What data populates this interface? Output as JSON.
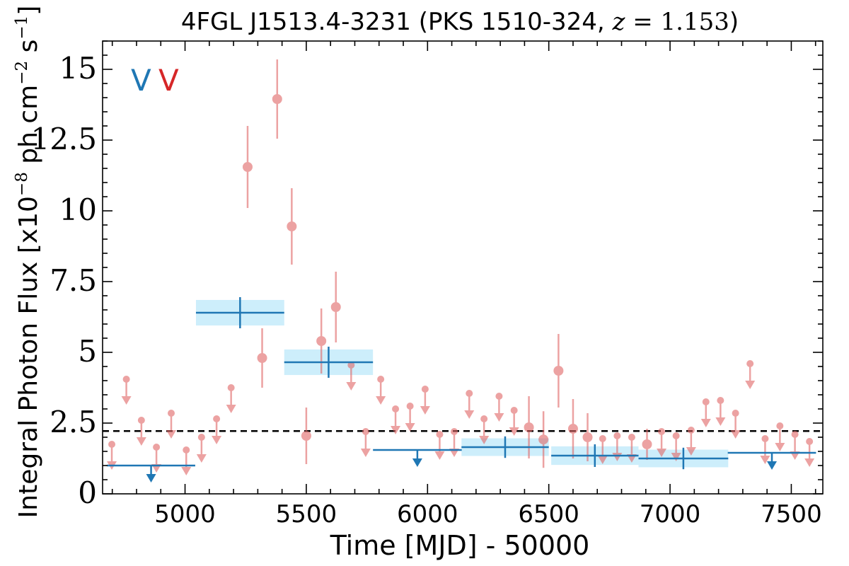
{
  "chart_data": {
    "type": "scatter",
    "title": "4FGL J1513.4-3231 (PKS 1510-324, z = 1.153)",
    "title_parts": {
      "prefix": "4FGL J1513.4-3231 (PKS 1510-324, ",
      "var": "z",
      "eq": " = 1.153",
      "suffix": ")"
    },
    "xlabel": "Time [MJD] - 50000",
    "ylabel": "Integral Photon Flux [x10⁻⁸ ph cm⁻² s⁻¹]",
    "ylabel_parts": {
      "pre": "Integral Photon Flux [x10",
      "e1": "−8",
      "mid": " ph cm",
      "e2": "−2",
      "s": " s",
      "e3": "−1",
      "post": "]"
    },
    "xlim": [
      4660,
      7630
    ],
    "ylim": [
      0,
      16
    ],
    "xticks": [
      5000,
      5500,
      6000,
      6500,
      7000,
      7500
    ],
    "yticks": [
      0,
      2.5,
      5,
      7.5,
      10,
      12.5,
      15
    ],
    "ytick_labels": [
      "0",
      "2.5",
      "5",
      "7.5",
      "10",
      "12.5",
      "15"
    ],
    "legend": {
      "placement": "top-left",
      "labels": [
        {
          "text": "V",
          "color": "#1f77b4"
        },
        {
          "text": "V",
          "color": "#d62728"
        }
      ]
    },
    "colors": {
      "blue": "#1f77b4",
      "red": "#e06666",
      "band": "#cdeefb"
    },
    "threshold_line": 2.22,
    "series": [
      {
        "color": "#1f77b4",
        "detections": [
          {
            "x": 5227,
            "xerr": 182,
            "y": 6.4,
            "yerr": 0.55
          },
          {
            "x": 5592,
            "xerr": 183,
            "y": 4.65,
            "yerr": 0.55
          },
          {
            "x": 6320,
            "xerr": 180,
            "y": 1.65,
            "yerr": 0.38
          },
          {
            "x": 6690,
            "xerr": 180,
            "y": 1.35,
            "yerr": 0.4
          },
          {
            "x": 7055,
            "xerr": 185,
            "y": 1.25,
            "yerr": 0.38
          }
        ],
        "upper_limits": [
          {
            "x": 4860,
            "xerr": 182,
            "y": 1.0
          },
          {
            "x": 5958,
            "xerr": 183,
            "y": 1.55
          },
          {
            "x": 7420,
            "xerr": 182,
            "y": 1.45
          }
        ]
      },
      {
        "color": "#e06666",
        "detections": [
          {
            "x": 5258,
            "y": 11.55,
            "yerr": 1.45
          },
          {
            "x": 5318,
            "y": 4.8,
            "yerr": 1.05
          },
          {
            "x": 5380,
            "y": 13.95,
            "yerr": 1.4
          },
          {
            "x": 5440,
            "y": 9.45,
            "yerr": 1.35
          },
          {
            "x": 5500,
            "y": 2.05,
            "yerr": 1.0
          },
          {
            "x": 5562,
            "y": 5.4,
            "yerr": 1.15
          },
          {
            "x": 5622,
            "y": 6.6,
            "yerr": 1.25
          },
          {
            "x": 6418,
            "y": 2.35,
            "yerr": 1.1
          },
          {
            "x": 6478,
            "y": 1.92,
            "yerr": 1.0
          },
          {
            "x": 6540,
            "y": 4.35,
            "yerr": 1.3
          },
          {
            "x": 6600,
            "y": 2.3,
            "yerr": 1.05
          },
          {
            "x": 6660,
            "y": 2.0,
            "yerr": 0.85
          },
          {
            "x": 6905,
            "y": 1.75,
            "yerr": 0.55
          }
        ],
        "upper_limits": [
          {
            "x": 4698,
            "y": 1.75
          },
          {
            "x": 4758,
            "y": 4.05
          },
          {
            "x": 4820,
            "y": 2.6
          },
          {
            "x": 4882,
            "y": 1.65
          },
          {
            "x": 4943,
            "y": 2.85
          },
          {
            "x": 5005,
            "y": 1.55
          },
          {
            "x": 5068,
            "y": 2.0
          },
          {
            "x": 5130,
            "y": 2.65
          },
          {
            "x": 5190,
            "y": 3.75
          },
          {
            "x": 5685,
            "y": 4.55
          },
          {
            "x": 5745,
            "y": 2.2
          },
          {
            "x": 5807,
            "y": 4.05
          },
          {
            "x": 5868,
            "y": 3.0
          },
          {
            "x": 5928,
            "y": 3.1
          },
          {
            "x": 5990,
            "y": 3.7
          },
          {
            "x": 6050,
            "y": 2.1
          },
          {
            "x": 6110,
            "y": 2.2
          },
          {
            "x": 6172,
            "y": 3.55
          },
          {
            "x": 6233,
            "y": 2.65
          },
          {
            "x": 6295,
            "y": 3.45
          },
          {
            "x": 6357,
            "y": 2.95
          },
          {
            "x": 6722,
            "y": 1.95
          },
          {
            "x": 6782,
            "y": 2.05
          },
          {
            "x": 6842,
            "y": 2.0
          },
          {
            "x": 6965,
            "y": 2.2
          },
          {
            "x": 7025,
            "y": 2.05
          },
          {
            "x": 7087,
            "y": 2.25
          },
          {
            "x": 7148,
            "y": 3.25
          },
          {
            "x": 7208,
            "y": 3.3
          },
          {
            "x": 7270,
            "y": 2.85
          },
          {
            "x": 7330,
            "y": 4.6
          },
          {
            "x": 7392,
            "y": 1.95
          },
          {
            "x": 7453,
            "y": 2.4
          },
          {
            "x": 7515,
            "y": 2.1
          },
          {
            "x": 7575,
            "y": 1.85
          }
        ]
      }
    ]
  }
}
